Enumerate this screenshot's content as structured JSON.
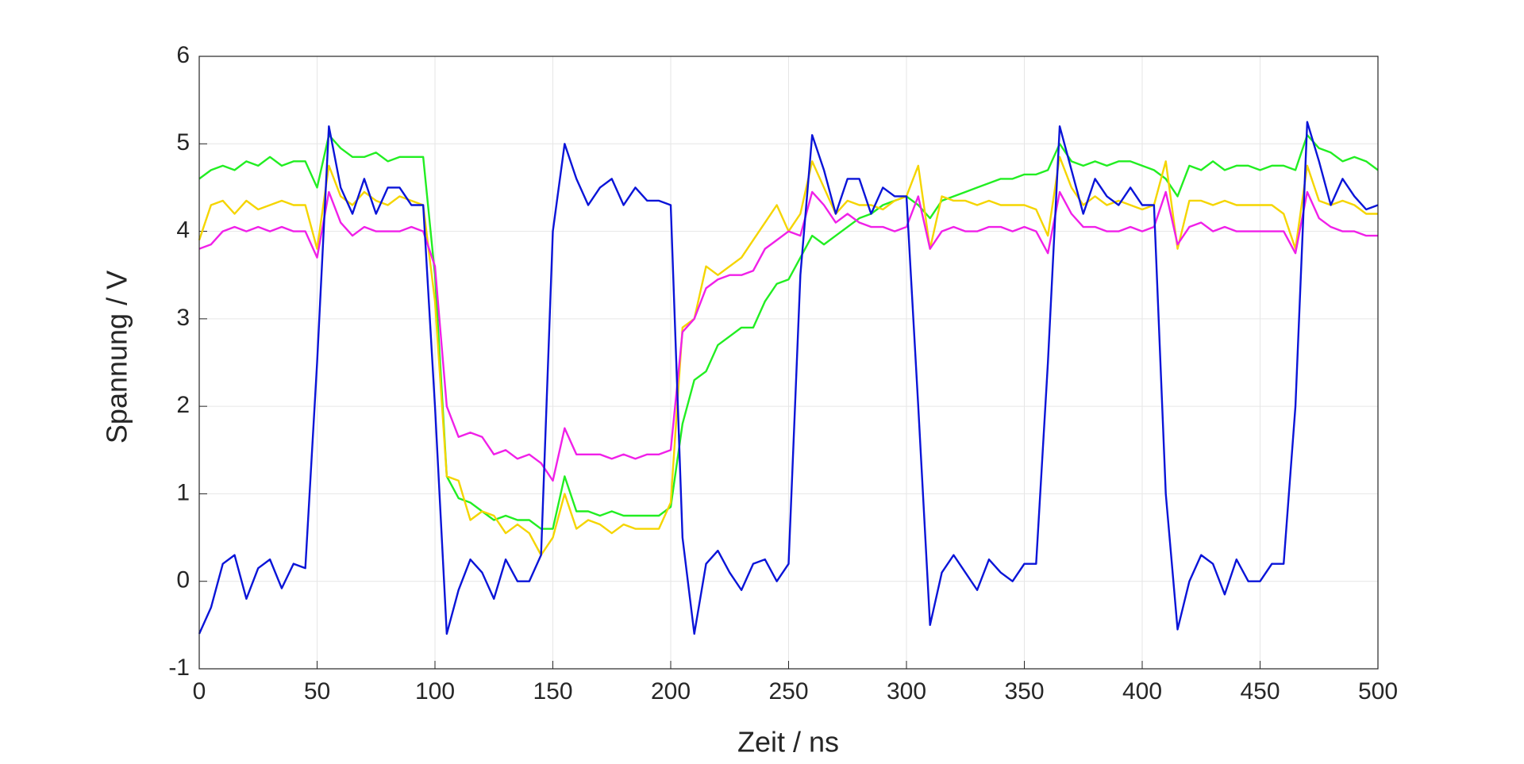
{
  "chart_data": {
    "type": "line",
    "xlabel": "Zeit / ns",
    "ylabel": "Spannung / V",
    "x": [
      0,
      5,
      10,
      15,
      20,
      25,
      30,
      35,
      40,
      45,
      50,
      55,
      60,
      65,
      70,
      75,
      80,
      85,
      90,
      95,
      100,
      105,
      110,
      115,
      120,
      125,
      130,
      135,
      140,
      145,
      150,
      155,
      160,
      165,
      170,
      175,
      180,
      185,
      190,
      195,
      200,
      205,
      210,
      215,
      220,
      225,
      230,
      235,
      240,
      245,
      250,
      255,
      260,
      265,
      270,
      275,
      280,
      285,
      290,
      295,
      300,
      305,
      310,
      315,
      320,
      325,
      330,
      335,
      340,
      345,
      350,
      355,
      360,
      365,
      370,
      375,
      380,
      385,
      390,
      395,
      400,
      405,
      410,
      415,
      420,
      425,
      430,
      435,
      440,
      445,
      450,
      455,
      460,
      465,
      470,
      475,
      480,
      485,
      490,
      495,
      500
    ],
    "xlim": [
      0,
      500
    ],
    "xticks": [
      0,
      50,
      100,
      150,
      200,
      250,
      300,
      350,
      400,
      450,
      500
    ],
    "ylim": [
      -1,
      6
    ],
    "yticks": [
      -1,
      0,
      1,
      2,
      3,
      4,
      5,
      6
    ],
    "grid": true,
    "series": [
      {
        "color": "#22ee22",
        "values": [
          4.6,
          4.7,
          4.75,
          4.7,
          4.8,
          4.75,
          4.85,
          4.75,
          4.8,
          4.8,
          4.5,
          5.1,
          4.95,
          4.85,
          4.85,
          4.9,
          4.8,
          4.85,
          4.85,
          4.85,
          3.5,
          1.2,
          0.95,
          0.9,
          0.8,
          0.7,
          0.75,
          0.7,
          0.7,
          0.6,
          0.6,
          1.2,
          0.8,
          0.8,
          0.75,
          0.8,
          0.75,
          0.75,
          0.75,
          0.75,
          0.85,
          1.8,
          2.3,
          2.4,
          2.7,
          2.8,
          2.9,
          2.9,
          3.2,
          3.4,
          3.45,
          3.7,
          3.95,
          3.85,
          3.95,
          4.05,
          4.15,
          4.2,
          4.3,
          4.35,
          4.4,
          4.3,
          4.15,
          4.35,
          4.4,
          4.45,
          4.5,
          4.55,
          4.6,
          4.6,
          4.65,
          4.65,
          4.7,
          5.0,
          4.8,
          4.75,
          4.8,
          4.75,
          4.8,
          4.8,
          4.75,
          4.7,
          4.6,
          4.4,
          4.75,
          4.7,
          4.8,
          4.7,
          4.75,
          4.75,
          4.7,
          4.75,
          4.75,
          4.7,
          5.1,
          4.95,
          4.9,
          4.8,
          4.85,
          4.8,
          4.7
        ]
      },
      {
        "color": "#f5d500",
        "values": [
          3.9,
          4.3,
          4.35,
          4.2,
          4.35,
          4.25,
          4.3,
          4.35,
          4.3,
          4.3,
          3.8,
          4.75,
          4.4,
          4.3,
          4.45,
          4.35,
          4.3,
          4.4,
          4.35,
          4.3,
          3.2,
          1.2,
          1.15,
          0.7,
          0.8,
          0.75,
          0.55,
          0.65,
          0.55,
          0.3,
          0.5,
          1.0,
          0.6,
          0.7,
          0.65,
          0.55,
          0.65,
          0.6,
          0.6,
          0.6,
          0.9,
          2.9,
          3.0,
          3.6,
          3.5,
          3.6,
          3.7,
          3.9,
          4.1,
          4.3,
          4.0,
          4.2,
          4.8,
          4.5,
          4.2,
          4.35,
          4.3,
          4.3,
          4.25,
          4.35,
          4.4,
          4.75,
          3.8,
          4.4,
          4.35,
          4.35,
          4.3,
          4.35,
          4.3,
          4.3,
          4.3,
          4.25,
          3.95,
          4.85,
          4.5,
          4.3,
          4.4,
          4.3,
          4.35,
          4.3,
          4.25,
          4.3,
          4.8,
          3.8,
          4.35,
          4.35,
          4.3,
          4.35,
          4.3,
          4.3,
          4.3,
          4.3,
          4.2,
          3.8,
          4.75,
          4.35,
          4.3,
          4.35,
          4.3,
          4.2,
          4.2
        ]
      },
      {
        "color": "#f020e8",
        "values": [
          3.8,
          3.85,
          4.0,
          4.05,
          4.0,
          4.05,
          4.0,
          4.05,
          4.0,
          4.0,
          3.7,
          4.45,
          4.1,
          3.95,
          4.05,
          4.0,
          4.0,
          4.0,
          4.05,
          4.0,
          3.6,
          2.0,
          1.65,
          1.7,
          1.65,
          1.45,
          1.5,
          1.4,
          1.45,
          1.35,
          1.15,
          1.75,
          1.45,
          1.45,
          1.45,
          1.4,
          1.45,
          1.4,
          1.45,
          1.45,
          1.5,
          2.85,
          3.0,
          3.35,
          3.45,
          3.5,
          3.5,
          3.55,
          3.8,
          3.9,
          4.0,
          3.95,
          4.45,
          4.3,
          4.1,
          4.2,
          4.1,
          4.05,
          4.05,
          4.0,
          4.05,
          4.4,
          3.8,
          4.0,
          4.05,
          4.0,
          4.0,
          4.05,
          4.05,
          4.0,
          4.05,
          4.0,
          3.75,
          4.45,
          4.2,
          4.05,
          4.05,
          4.0,
          4.0,
          4.05,
          4.0,
          4.05,
          4.45,
          3.85,
          4.05,
          4.1,
          4.0,
          4.05,
          4.0,
          4.0,
          4.0,
          4.0,
          4.0,
          3.75,
          4.45,
          4.15,
          4.05,
          4.0,
          4.0,
          3.95,
          3.95
        ]
      },
      {
        "color": "#0a14d8",
        "values": [
          -0.6,
          -0.3,
          0.2,
          0.3,
          -0.2,
          0.15,
          0.25,
          -0.08,
          0.2,
          0.15,
          2.5,
          5.2,
          4.5,
          4.2,
          4.6,
          4.2,
          4.5,
          4.5,
          4.3,
          4.3,
          2.0,
          -0.6,
          -0.1,
          0.25,
          0.1,
          -0.2,
          0.25,
          0.0,
          0.0,
          0.3,
          4.0,
          5.0,
          4.6,
          4.3,
          4.5,
          4.6,
          4.3,
          4.5,
          4.35,
          4.35,
          4.3,
          0.5,
          -0.6,
          0.2,
          0.35,
          0.1,
          -0.1,
          0.2,
          0.25,
          0.0,
          0.2,
          3.5,
          5.1,
          4.7,
          4.2,
          4.6,
          4.6,
          4.2,
          4.5,
          4.4,
          4.4,
          2.0,
          -0.5,
          0.1,
          0.3,
          0.1,
          -0.1,
          0.25,
          0.1,
          0.0,
          0.2,
          0.2,
          2.5,
          5.2,
          4.7,
          4.2,
          4.6,
          4.4,
          4.3,
          4.5,
          4.3,
          4.3,
          1.0,
          -0.55,
          0.0,
          0.3,
          0.2,
          -0.15,
          0.25,
          0.0,
          0.0,
          0.2,
          0.2,
          2.0,
          5.25,
          4.8,
          4.3,
          4.6,
          4.4,
          4.25,
          4.3
        ]
      }
    ]
  }
}
